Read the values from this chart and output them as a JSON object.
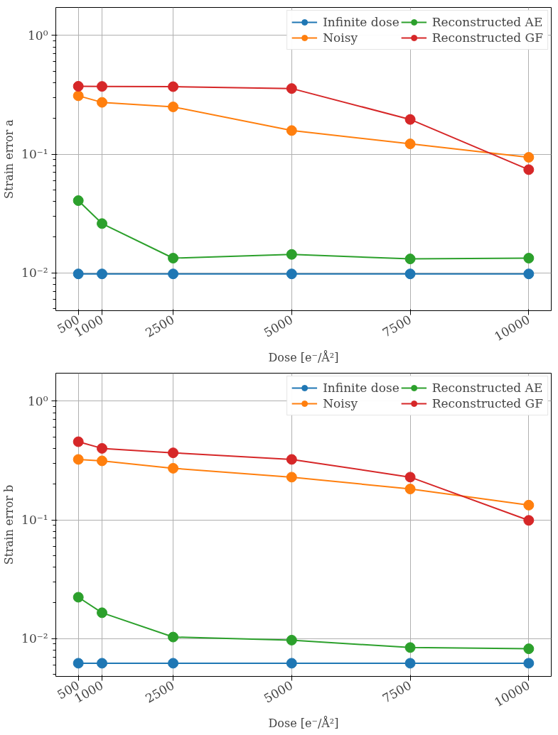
{
  "chart_data": [
    {
      "type": "line",
      "xlabel": "Dose [e⁻/Å²]",
      "ylabel": "Strain error a",
      "log": "y",
      "grid": true,
      "legend": "top right",
      "marker": "circle",
      "line_style": "solid",
      "x": [
        500,
        1000,
        2500,
        5000,
        7500,
        10000
      ],
      "xlim": [
        25,
        10475
      ],
      "xticks": [
        500,
        1000,
        2500,
        5000,
        7500,
        10000
      ],
      "ylim": [
        0.0048,
        1.72
      ],
      "yticks": [
        {
          "value": 1,
          "label": "10⁰"
        },
        {
          "value": 0.1,
          "label": "10⁻¹"
        },
        {
          "value": 0.01,
          "label": "10⁻²"
        },
        {
          "value": 0.005,
          "label": null
        },
        {
          "value": 0.006,
          "label": null
        },
        {
          "value": 0.007,
          "label": null
        },
        {
          "value": 0.008,
          "label": null
        },
        {
          "value": 0.009,
          "label": null
        },
        {
          "value": 0.02,
          "label": null
        },
        {
          "value": 0.03,
          "label": null
        },
        {
          "value": 0.04,
          "label": null
        },
        {
          "value": 0.05,
          "label": null
        },
        {
          "value": 0.06,
          "label": null
        },
        {
          "value": 0.07,
          "label": null
        },
        {
          "value": 0.08,
          "label": null
        },
        {
          "value": 0.09,
          "label": null
        },
        {
          "value": 0.2,
          "label": null
        },
        {
          "value": 0.3,
          "label": null
        },
        {
          "value": 0.4,
          "label": null
        },
        {
          "value": 0.5,
          "label": null
        },
        {
          "value": 0.6,
          "label": null
        },
        {
          "value": 0.7,
          "label": null
        },
        {
          "value": 0.8,
          "label": null
        },
        {
          "value": 0.9,
          "label": null
        }
      ],
      "series": [
        {
          "name": "Infinite dose",
          "color": "#1f77b4",
          "values": [
            0.0098,
            0.0098,
            0.0098,
            0.0098,
            0.0098,
            0.0098
          ]
        },
        {
          "name": "Noisy",
          "color": "#ff7f0e",
          "values": [
            0.31,
            0.273,
            0.25,
            0.158,
            0.122,
            0.094
          ]
        },
        {
          "name": "Reconstructed AE",
          "color": "#2ca02c",
          "values": [
            0.0406,
            0.026,
            0.0133,
            0.0143,
            0.0131,
            0.0133
          ]
        },
        {
          "name": "Reconstructed GF",
          "color": "#d62728",
          "values": [
            0.373,
            0.372,
            0.37,
            0.357,
            0.196,
            0.074
          ]
        }
      ]
    },
    {
      "type": "line",
      "xlabel": "Dose [e⁻/Å²]",
      "ylabel": "Strain error b",
      "log": "y",
      "grid": true,
      "legend": "top right",
      "marker": "circle",
      "line_style": "solid",
      "x": [
        500,
        1000,
        2500,
        5000,
        7500,
        10000
      ],
      "xlim": [
        25,
        10475
      ],
      "xticks": [
        500,
        1000,
        2500,
        5000,
        7500,
        10000
      ],
      "ylim": [
        0.0048,
        1.72
      ],
      "yticks": [
        {
          "value": 1,
          "label": "10⁰"
        },
        {
          "value": 0.1,
          "label": "10⁻¹"
        },
        {
          "value": 0.01,
          "label": "10⁻²"
        },
        {
          "value": 0.005,
          "label": null
        },
        {
          "value": 0.006,
          "label": null
        },
        {
          "value": 0.007,
          "label": null
        },
        {
          "value": 0.008,
          "label": null
        },
        {
          "value": 0.009,
          "label": null
        },
        {
          "value": 0.02,
          "label": null
        },
        {
          "value": 0.03,
          "label": null
        },
        {
          "value": 0.04,
          "label": null
        },
        {
          "value": 0.05,
          "label": null
        },
        {
          "value": 0.06,
          "label": null
        },
        {
          "value": 0.07,
          "label": null
        },
        {
          "value": 0.08,
          "label": null
        },
        {
          "value": 0.09,
          "label": null
        },
        {
          "value": 0.2,
          "label": null
        },
        {
          "value": 0.3,
          "label": null
        },
        {
          "value": 0.4,
          "label": null
        },
        {
          "value": 0.5,
          "label": null
        },
        {
          "value": 0.6,
          "label": null
        },
        {
          "value": 0.7,
          "label": null
        },
        {
          "value": 0.8,
          "label": null
        },
        {
          "value": 0.9,
          "label": null
        }
      ],
      "series": [
        {
          "name": "Infinite dose",
          "color": "#1f77b4",
          "values": [
            0.0062,
            0.0062,
            0.0062,
            0.0062,
            0.0062,
            0.0062
          ]
        },
        {
          "name": "Noisy",
          "color": "#ff7f0e",
          "values": [
            0.323,
            0.314,
            0.272,
            0.229,
            0.182,
            0.133
          ]
        },
        {
          "name": "Reconstructed AE",
          "color": "#2ca02c",
          "values": [
            0.0223,
            0.0165,
            0.0103,
            0.0097,
            0.0084,
            0.0082
          ]
        },
        {
          "name": "Reconstructed GF",
          "color": "#d62728",
          "values": [
            0.455,
            0.4,
            0.367,
            0.323,
            0.229,
            0.099
          ]
        }
      ]
    }
  ]
}
